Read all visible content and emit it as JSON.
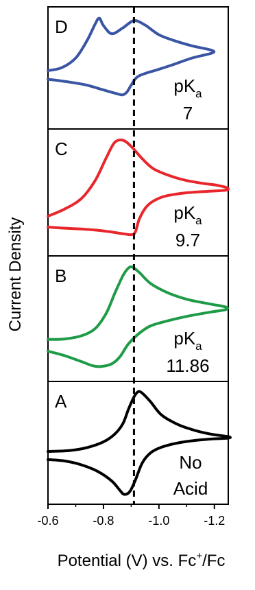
{
  "chart_data": {
    "type": "line",
    "xlabel": "Potential (V) vs. Fc⁺/Fc",
    "xlabel_parts": {
      "main": "Potential (V) vs. Fc",
      "sup": "+",
      "tail": "/Fc"
    },
    "ylabel": "Current Density",
    "xlim": [
      -0.6,
      -1.25
    ],
    "x_reversed": true,
    "xticks": [
      -0.6,
      -0.8,
      -1.0,
      -1.2
    ],
    "xtick_labels": [
      "-0.6",
      "-0.8",
      "-1.0",
      "-1.2"
    ],
    "reference_line": {
      "x": -0.91,
      "style": "dashed",
      "color": "#000000"
    },
    "panels": [
      {
        "label": "D",
        "annotation": {
          "pk": "pK",
          "sub": "a",
          "value": "7"
        },
        "color": "#3a55a4",
        "ylim": [
          -1.1,
          1.25
        ],
        "x": [
          -0.6,
          -0.65,
          -0.7,
          -0.74,
          -0.77,
          -0.785,
          -0.8,
          -0.83,
          -0.87,
          -0.91,
          -0.95,
          -1.0,
          -1.06,
          -1.12,
          -1.19,
          -1.19,
          -1.12,
          -1.05,
          -0.99,
          -0.95,
          -0.92,
          -0.9,
          -0.885,
          -0.87,
          -0.85,
          -0.8,
          -0.74,
          -0.68,
          -0.63,
          -0.6
        ],
        "y": [
          0.02,
          0.08,
          0.28,
          0.63,
          0.98,
          1.1,
          0.95,
          0.78,
          0.9,
          1.05,
          0.96,
          0.76,
          0.63,
          0.53,
          0.44,
          0.38,
          0.28,
          0.14,
          0.03,
          -0.04,
          -0.12,
          -0.28,
          -0.42,
          -0.48,
          -0.46,
          -0.38,
          -0.28,
          -0.22,
          -0.18,
          -0.16
        ]
      },
      {
        "label": "C",
        "annotation": {
          "pk": "pK",
          "sub": "a",
          "value": "9.7"
        },
        "color": "#e8272d",
        "ylim": [
          -1.2,
          1.3
        ],
        "x": [
          -0.6,
          -0.66,
          -0.72,
          -0.77,
          -0.81,
          -0.84,
          -0.87,
          -0.9,
          -0.94,
          -0.98,
          -1.04,
          -1.1,
          -1.16,
          -1.21,
          -1.245,
          -1.245,
          -1.2,
          -1.14,
          -1.08,
          -1.01,
          -0.96,
          -0.93,
          -0.915,
          -0.9,
          -0.87,
          -0.8,
          -0.72,
          -0.65,
          -0.6
        ],
        "y": [
          -0.45,
          -0.3,
          -0.08,
          0.3,
          0.78,
          1.1,
          1.15,
          1.02,
          0.76,
          0.55,
          0.4,
          0.3,
          0.24,
          0.2,
          0.15,
          0.1,
          0.08,
          0.06,
          0.03,
          -0.05,
          -0.22,
          -0.5,
          -0.78,
          -0.84,
          -0.82,
          -0.76,
          -0.72,
          -0.7,
          -0.68
        ]
      },
      {
        "label": "B",
        "annotation": {
          "pk": "pK",
          "sub": "a",
          "value": "11.86"
        },
        "color": "#1f9b48",
        "ylim": [
          -1.3,
          1.3
        ],
        "x": [
          -0.6,
          -0.66,
          -0.72,
          -0.77,
          -0.81,
          -0.84,
          -0.87,
          -0.89,
          -0.905,
          -0.93,
          -0.97,
          -1.03,
          -1.1,
          -1.18,
          -1.24,
          -1.24,
          -1.18,
          -1.1,
          -1.03,
          -0.97,
          -0.93,
          -0.89,
          -0.86,
          -0.83,
          -0.79,
          -0.76,
          -0.72,
          -0.66,
          -0.6
        ],
        "y": [
          -0.46,
          -0.45,
          -0.38,
          -0.22,
          0.12,
          0.55,
          0.95,
          1.12,
          1.14,
          1.02,
          0.78,
          0.58,
          0.43,
          0.33,
          0.26,
          0.2,
          0.14,
          0.05,
          -0.05,
          -0.16,
          -0.32,
          -0.56,
          -0.84,
          -1.0,
          -1.06,
          -1.04,
          -0.95,
          -0.82,
          -0.72
        ]
      },
      {
        "label": "A",
        "annotation": {
          "line1": "No",
          "line2": "Acid"
        },
        "color": "#000000",
        "ylim": [
          -1.2,
          1.2
        ],
        "x": [
          -0.6,
          -0.68,
          -0.74,
          -0.8,
          -0.84,
          -0.87,
          -0.89,
          -0.91,
          -0.925,
          -0.94,
          -0.97,
          -1.01,
          -1.07,
          -1.13,
          -1.19,
          -1.25,
          -1.25,
          -1.19,
          -1.13,
          -1.07,
          -1.01,
          -0.97,
          -0.94,
          -0.915,
          -0.895,
          -0.875,
          -0.86,
          -0.83,
          -0.78,
          -0.72,
          -0.66,
          -0.6
        ],
        "y": [
          -0.18,
          -0.16,
          -0.1,
          0.02,
          0.18,
          0.4,
          0.7,
          0.96,
          1.07,
          1.04,
          0.86,
          0.58,
          0.38,
          0.26,
          0.18,
          0.13,
          0.1,
          0.08,
          0.05,
          0.0,
          -0.09,
          -0.21,
          -0.42,
          -0.78,
          -1.02,
          -1.08,
          -1.0,
          -0.8,
          -0.6,
          -0.46,
          -0.38,
          -0.35
        ]
      }
    ]
  }
}
